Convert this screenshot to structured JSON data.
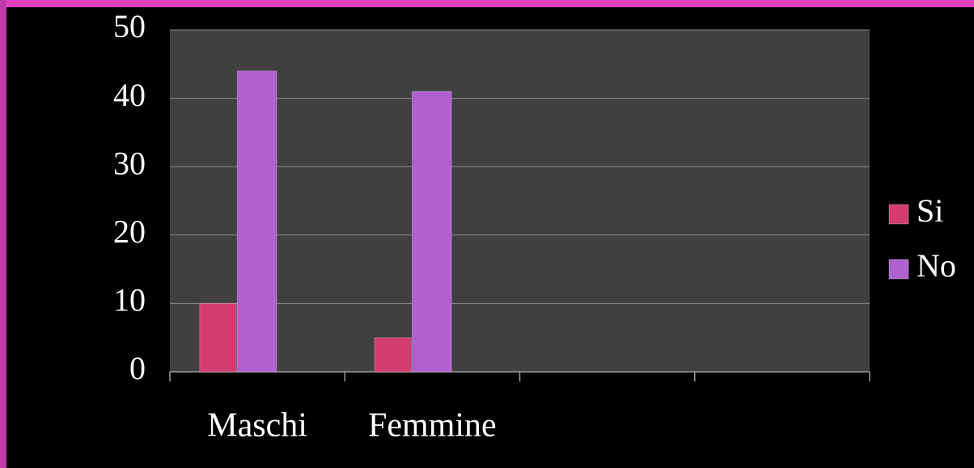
{
  "chart_data": {
    "type": "bar",
    "categories": [
      "Maschi",
      "Femmine",
      null,
      null
    ],
    "series": [
      {
        "name": "Si",
        "color": "#d23c70",
        "values": [
          10,
          5,
          null,
          null
        ]
      },
      {
        "name": "No",
        "color": "#b060d0",
        "values": [
          44,
          41,
          null,
          null
        ]
      }
    ],
    "ylim": [
      0,
      50
    ],
    "yticks": [
      0,
      10,
      20,
      30,
      40,
      50
    ],
    "grid": true,
    "legend": "right"
  }
}
